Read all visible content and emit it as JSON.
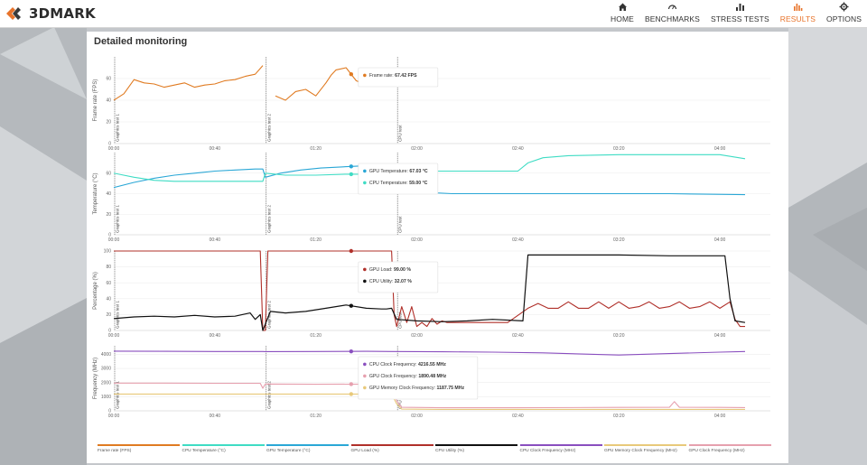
{
  "app": {
    "logo_text": "3DMARK"
  },
  "nav": [
    {
      "label": "HOME",
      "icon": "home-icon",
      "active": false
    },
    {
      "label": "BENCHMARKS",
      "icon": "gauge-icon",
      "active": false
    },
    {
      "label": "STRESS TESTS",
      "icon": "bar-chart-icon",
      "active": false
    },
    {
      "label": "RESULTS",
      "icon": "results-icon",
      "active": true
    },
    {
      "label": "OPTIONS",
      "icon": "gear-icon",
      "active": false
    }
  ],
  "panel": {
    "title": "Detailed monitoring"
  },
  "colors": {
    "accent": "#e8732a",
    "frame_rate": "#e07b22",
    "cpu_temp": "#3fdcc4",
    "gpu_temp": "#2aa7d6",
    "gpu_load": "#b0302a",
    "cpu_util": "#111111",
    "cpu_clock": "#8a4fbf",
    "gpu_mem_clock": "#e8c97a",
    "gpu_clock": "#e6a0ae"
  },
  "chart_data": {
    "type": "line",
    "x_ticks": [
      "00:00",
      "00:40",
      "01:20",
      "02:00",
      "02:40",
      "03:20",
      "04:00"
    ],
    "sections": [
      "Graphics test 1",
      "Graphics test 2",
      "CPU test"
    ],
    "charts": [
      {
        "ylabel": "Frame rate (FPS)",
        "yticks": [
          "0",
          "20",
          "40",
          "60"
        ],
        "ylim": [
          0,
          80
        ],
        "series": [
          {
            "name": "Frame rate (FPS)",
            "color_key": "frame_rate",
            "x": [
              0,
              4,
              8,
              12,
              16,
              20,
              24,
              28,
              32,
              36,
              40,
              44,
              48,
              52,
              56,
              59,
              60.5,
              64,
              68,
              72,
              76,
              80,
              84,
              86,
              88,
              92,
              96,
              100,
              104,
              106,
              108
            ],
            "y": [
              40,
              46,
              59,
              56,
              55,
              52,
              54,
              56,
              52,
              54,
              55,
              58,
              59,
              62,
              64,
              72,
              null,
              44,
              40,
              48,
              50,
              44,
              56,
              63,
              68,
              70,
              58,
              54,
              60,
              61,
              null
            ]
          }
        ],
        "tooltip": [
          {
            "label": "Frame rate:",
            "value": "67.42 FPS",
            "color_key": "frame_rate"
          }
        ]
      },
      {
        "ylabel": "Temperature (°C)",
        "yticks": [
          "0",
          "20",
          "40",
          "60"
        ],
        "ylim": [
          0,
          80
        ],
        "series": [
          {
            "name": "GPU Temperature (°C)",
            "color_key": "gpu_temp",
            "x": [
              0,
              8,
              16,
              24,
              32,
              40,
              48,
              56,
              59,
              60,
              66,
              74,
              82,
              90,
              98,
              106,
              110,
              114,
              118,
              126,
              134,
              144,
              160,
              190,
              220,
              250
            ],
            "y": [
              46,
              51,
              55,
              58,
              60,
              62,
              63,
              64,
              64,
              56,
              60,
              63,
              65,
              66,
              67,
              68,
              66,
              47,
              42,
              41,
              40,
              40,
              40,
              40,
              40,
              39
            ]
          },
          {
            "name": "CPU Temperature (°C)",
            "color_key": "cpu_temp",
            "x": [
              0,
              8,
              16,
              24,
              32,
              40,
              48,
              56,
              59,
              60,
              68,
              80,
              92,
              100,
              106,
              110,
              116,
              128,
              140,
              160,
              164,
              170,
              180,
              200,
              220,
              240,
              250
            ],
            "y": [
              60,
              56,
              53,
              52,
              52,
              52,
              52,
              52,
              52,
              60,
              58,
              58,
              59,
              59,
              60,
              58,
              62,
              62,
              62,
              62,
              70,
              75,
              77,
              78,
              78,
              78,
              74
            ]
          }
        ],
        "tooltip": [
          {
            "label": "GPU Temperature:",
            "value": "67.03 °C",
            "color_key": "gpu_temp"
          },
          {
            "label": "CPU Temperature:",
            "value": "59.00 °C",
            "color_key": "cpu_temp"
          }
        ]
      },
      {
        "ylabel": "Percentage (%)",
        "yticks": [
          "0",
          "20",
          "40",
          "60",
          "80",
          "100"
        ],
        "ylim": [
          0,
          100
        ],
        "series": [
          {
            "name": "GPU Load (%)",
            "color_key": "gpu_load",
            "x": [
              0,
              58,
              59,
              60,
              61,
              110,
              111,
              112,
              114,
              116,
              118,
              120,
              122,
              124,
              126,
              128,
              130,
              132,
              136,
              140,
              148,
              156,
              164,
              168,
              172,
              176,
              180,
              184,
              188,
              192,
              196,
              200,
              204,
              208,
              212,
              216,
              220,
              224,
              228,
              232,
              236,
              240,
              244,
              246,
              248,
              250
            ],
            "y": [
              100,
              100,
              0,
              0,
              100,
              100,
              20,
              5,
              30,
              10,
              30,
              5,
              10,
              5,
              15,
              8,
              12,
              10,
              10,
              10,
              10,
              10,
              28,
              34,
              28,
              28,
              36,
              28,
              28,
              36,
              28,
              36,
              28,
              30,
              36,
              28,
              30,
              36,
              28,
              30,
              36,
              28,
              36,
              14,
              5,
              5
            ]
          },
          {
            "name": "CPU Utility (%)",
            "color_key": "cpu_util",
            "x": [
              0,
              8,
              16,
              24,
              32,
              40,
              48,
              54,
              56,
              58,
              59,
              62,
              68,
              76,
              84,
              92,
              100,
              106,
              108,
              110,
              112,
              120,
              130,
              140,
              150,
              162,
              164,
              170,
              180,
              200,
              220,
              240,
              242,
              244,
              246,
              250
            ],
            "y": [
              15,
              17,
              18,
              17,
              19,
              17,
              18,
              22,
              14,
              20,
              0,
              24,
              22,
              24,
              28,
              32,
              28,
              27,
              27,
              28,
              14,
              12,
              11,
              12,
              14,
              12,
              95,
              95,
              95,
              95,
              94,
              94,
              94,
              40,
              12,
              10
            ]
          }
        ],
        "tooltip": [
          {
            "label": "GPU Load:",
            "value": "99.00 %",
            "color_key": "gpu_load"
          },
          {
            "label": "CPU Utility:",
            "value": "32.07 %",
            "color_key": "cpu_util"
          }
        ]
      },
      {
        "ylabel": "Frequency (MHz)",
        "yticks": [
          "0",
          "1000",
          "2000",
          "3000",
          "4000"
        ],
        "ylim": [
          0,
          4600
        ],
        "series": [
          {
            "name": "CPU Clock Frequency (MHz)",
            "color_key": "cpu_clock",
            "x": [
              0,
              20,
              40,
              59,
              60,
              80,
              100,
              110,
              130,
              150,
              170,
              190,
              200,
              220,
              240,
              250
            ],
            "y": [
              4220,
              4210,
              4200,
              4200,
              4190,
              4200,
              4210,
              4200,
              4180,
              4150,
              4100,
              4000,
              3950,
              4050,
              4150,
              4200
            ]
          },
          {
            "name": "GPU Clock Frequency (MHz)",
            "color_key": "gpu_clock",
            "x": [
              0,
              20,
              40,
              58,
              59,
              60,
              80,
              100,
              110,
              112,
              114,
              130,
              160,
              200,
              220,
              222,
              224,
              240,
              250
            ],
            "y": [
              1960,
              1960,
              1950,
              1950,
              1600,
              1900,
              1880,
              1890,
              1890,
              700,
              250,
              220,
              220,
              240,
              250,
              650,
              250,
              240,
              230
            ]
          },
          {
            "name": "GPU Memory Clock Frequency (MHz)",
            "color_key": "gpu_mem_clock",
            "x": [
              0,
              59,
              60,
              110,
              112,
              114,
              130,
              160,
              200,
              250
            ],
            "y": [
              1188,
              1188,
              1188,
              1188,
              500,
              120,
              100,
              100,
              100,
              100
            ]
          }
        ],
        "tooltip": [
          {
            "label": "CPU Clock Frequency:",
            "value": "4216.55 MHz",
            "color_key": "cpu_clock"
          },
          {
            "label": "GPU Clock Frequency:",
            "value": "1890.48 MHz",
            "color_key": "gpu_clock"
          },
          {
            "label": "GPU Memory Clock Frequency:",
            "value": "1187.75 MHz",
            "color_key": "gpu_mem_clock"
          }
        ]
      }
    ],
    "hover_x": 94,
    "x_range": [
      0,
      260
    ]
  },
  "legend": [
    {
      "label": "Frame rate (FPS)",
      "color_key": "frame_rate"
    },
    {
      "label": "CPU Temperature (°C)",
      "color_key": "cpu_temp"
    },
    {
      "label": "GPU Temperature (°C)",
      "color_key": "gpu_temp"
    },
    {
      "label": "GPU Load (%)",
      "color_key": "gpu_load"
    },
    {
      "label": "CPU Utility (%)",
      "color_key": "cpu_util"
    },
    {
      "label": "CPU Clock Frequency (MHz)",
      "color_key": "cpu_clock"
    },
    {
      "label": "GPU Memory Clock Frequency (MHz)",
      "color_key": "gpu_mem_clock"
    },
    {
      "label": "GPU Clock Frequency (MHz)",
      "color_key": "gpu_clock"
    }
  ]
}
